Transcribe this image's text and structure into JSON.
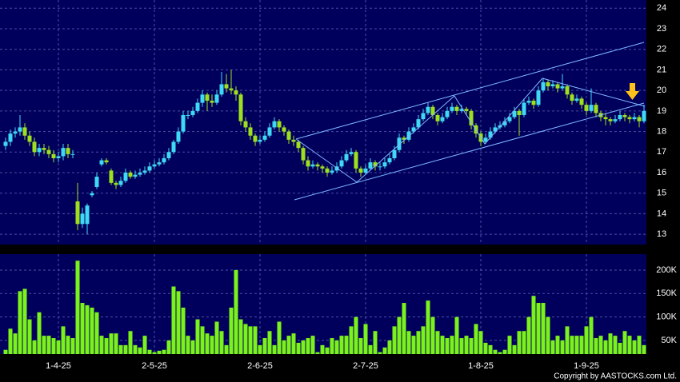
{
  "chart_data": [
    {
      "type": "candlestick",
      "up_color": "#3fd8f5",
      "down_color": "#9ee01e",
      "grid": true,
      "ylim": [
        12.5,
        24.4
      ],
      "yticks": [
        13,
        14,
        15,
        16,
        17,
        18,
        19,
        20,
        21,
        22,
        23,
        24
      ],
      "ohlc": [
        [
          17.3,
          17.7,
          17.1,
          17.5
        ],
        [
          17.5,
          18.1,
          17.3,
          17.9
        ],
        [
          17.9,
          18.2,
          17.7,
          18.0
        ],
        [
          18.0,
          18.8,
          17.8,
          18.2
        ],
        [
          18.2,
          18.4,
          17.6,
          17.8
        ],
        [
          17.8,
          18.0,
          17.3,
          17.5
        ],
        [
          17.5,
          17.7,
          16.8,
          17.0
        ],
        [
          17.0,
          17.4,
          16.8,
          17.2
        ],
        [
          17.2,
          17.4,
          16.9,
          17.1
        ],
        [
          17.1,
          17.3,
          16.7,
          16.9
        ],
        [
          16.9,
          17.1,
          16.5,
          16.7
        ],
        [
          16.7,
          17.0,
          16.5,
          16.8
        ],
        [
          16.8,
          17.4,
          16.6,
          17.2
        ],
        [
          17.2,
          17.4,
          16.7,
          16.9
        ],
        [
          16.9,
          17.1,
          16.7,
          16.9
        ],
        [
          14.6,
          15.5,
          13.2,
          13.5
        ],
        [
          13.5,
          14.3,
          13.3,
          14.0
        ],
        [
          13.5,
          14.5,
          13.0,
          14.4
        ],
        [
          14.9,
          15.1,
          14.8,
          15.0
        ],
        [
          15.3,
          16.0,
          15.2,
          15.8
        ],
        [
          16.4,
          16.7,
          16.3,
          16.6
        ],
        [
          16.6,
          16.7,
          16.4,
          16.5
        ],
        [
          16.1,
          16.2,
          15.4,
          15.5
        ],
        [
          15.5,
          15.6,
          15.2,
          15.4
        ],
        [
          15.4,
          15.8,
          15.3,
          15.6
        ],
        [
          15.6,
          16.2,
          15.5,
          16.0
        ],
        [
          16.0,
          16.1,
          15.7,
          15.8
        ],
        [
          15.8,
          16.1,
          15.7,
          15.9
        ],
        [
          15.9,
          16.2,
          15.8,
          16.0
        ],
        [
          16.0,
          16.3,
          15.9,
          16.1
        ],
        [
          16.1,
          16.5,
          16.0,
          16.3
        ],
        [
          16.3,
          16.6,
          16.2,
          16.4
        ],
        [
          16.4,
          16.7,
          16.3,
          16.5
        ],
        [
          16.5,
          16.9,
          16.4,
          16.7
        ],
        [
          16.7,
          17.2,
          16.6,
          17.0
        ],
        [
          17.0,
          17.6,
          16.9,
          17.5
        ],
        [
          17.5,
          18.2,
          17.4,
          18.0
        ],
        [
          18.0,
          19.0,
          17.9,
          18.8
        ],
        [
          18.8,
          19.0,
          18.6,
          18.8
        ],
        [
          18.8,
          19.2,
          18.7,
          19.0
        ],
        [
          19.0,
          19.6,
          18.9,
          19.4
        ],
        [
          19.4,
          20.0,
          19.2,
          19.8
        ],
        [
          19.8,
          19.9,
          19.0,
          19.5
        ],
        [
          19.5,
          19.8,
          19.2,
          19.4
        ],
        [
          19.4,
          20.0,
          19.3,
          19.8
        ],
        [
          19.8,
          20.9,
          19.7,
          20.3
        ],
        [
          20.3,
          20.8,
          19.9,
          20.1
        ],
        [
          20.1,
          21.0,
          19.8,
          20.0
        ],
        [
          20.0,
          20.2,
          19.5,
          19.8
        ],
        [
          19.8,
          19.9,
          18.3,
          18.5
        ],
        [
          18.5,
          18.7,
          18.0,
          18.2
        ],
        [
          18.2,
          18.4,
          17.6,
          17.8
        ],
        [
          17.8,
          17.9,
          17.3,
          17.5
        ],
        [
          17.5,
          17.8,
          17.4,
          17.6
        ],
        [
          17.6,
          18.0,
          17.5,
          17.8
        ],
        [
          17.8,
          18.4,
          17.7,
          18.2
        ],
        [
          18.2,
          18.7,
          18.1,
          18.5
        ],
        [
          18.5,
          18.6,
          18.0,
          18.2
        ],
        [
          18.2,
          18.3,
          17.8,
          18.0
        ],
        [
          18.0,
          18.1,
          17.4,
          17.6
        ],
        [
          17.6,
          17.8,
          17.3,
          17.5
        ],
        [
          17.5,
          17.6,
          17.0,
          17.2
        ],
        [
          17.2,
          17.3,
          16.4,
          16.6
        ],
        [
          16.6,
          16.8,
          16.1,
          16.3
        ],
        [
          16.3,
          16.6,
          16.2,
          16.4
        ],
        [
          16.4,
          16.5,
          16.1,
          16.3
        ],
        [
          16.3,
          16.4,
          16.0,
          16.2
        ],
        [
          16.2,
          16.3,
          15.8,
          16.0
        ],
        [
          16.0,
          16.3,
          15.9,
          16.1
        ],
        [
          16.1,
          16.5,
          16.0,
          16.3
        ],
        [
          16.3,
          16.8,
          16.2,
          16.6
        ],
        [
          16.6,
          17.1,
          16.5,
          16.9
        ],
        [
          16.9,
          17.2,
          16.8,
          17.0
        ],
        [
          17.0,
          17.1,
          16.0,
          16.2
        ],
        [
          16.2,
          16.3,
          15.8,
          16.0
        ],
        [
          16.0,
          16.4,
          15.9,
          16.2
        ],
        [
          16.2,
          16.7,
          16.1,
          16.5
        ],
        [
          16.5,
          16.6,
          16.1,
          16.3
        ],
        [
          16.3,
          16.5,
          16.1,
          16.3
        ],
        [
          16.3,
          16.7,
          16.2,
          16.5
        ],
        [
          16.5,
          16.9,
          16.4,
          16.7
        ],
        [
          16.7,
          17.3,
          16.6,
          17.1
        ],
        [
          17.1,
          17.9,
          17.0,
          17.7
        ],
        [
          17.7,
          17.8,
          17.4,
          17.6
        ],
        [
          17.6,
          18.2,
          17.5,
          18.0
        ],
        [
          18.0,
          18.4,
          17.9,
          18.2
        ],
        [
          18.2,
          18.8,
          18.1,
          18.6
        ],
        [
          18.6,
          19.1,
          18.5,
          18.9
        ],
        [
          18.9,
          19.4,
          18.8,
          19.2
        ],
        [
          19.2,
          19.3,
          18.6,
          18.8
        ],
        [
          18.8,
          18.9,
          18.3,
          18.5
        ],
        [
          18.5,
          18.9,
          18.4,
          18.7
        ],
        [
          18.7,
          19.2,
          18.6,
          19.0
        ],
        [
          19.0,
          19.4,
          18.9,
          19.2
        ],
        [
          19.2,
          19.3,
          18.8,
          19.0
        ],
        [
          19.0,
          19.3,
          18.9,
          19.1
        ],
        [
          19.1,
          19.2,
          18.8,
          19.0
        ],
        [
          19.0,
          19.1,
          18.1,
          18.3
        ],
        [
          18.3,
          18.4,
          17.7,
          17.9
        ],
        [
          17.9,
          18.0,
          17.3,
          17.5
        ],
        [
          17.5,
          17.9,
          17.4,
          17.7
        ],
        [
          17.7,
          18.2,
          17.6,
          18.0
        ],
        [
          18.0,
          18.4,
          17.9,
          18.2
        ],
        [
          18.2,
          18.5,
          18.1,
          18.3
        ],
        [
          18.3,
          18.7,
          18.2,
          18.5
        ],
        [
          18.5,
          18.9,
          18.4,
          18.7
        ],
        [
          18.7,
          19.2,
          18.6,
          19.0
        ],
        [
          19.0,
          19.1,
          17.8,
          18.8
        ],
        [
          18.8,
          19.6,
          18.7,
          19.4
        ],
        [
          19.4,
          19.7,
          19.3,
          19.5
        ],
        [
          19.5,
          19.6,
          19.1,
          19.3
        ],
        [
          19.3,
          20.2,
          19.2,
          20.0
        ],
        [
          20.0,
          20.6,
          19.9,
          20.4
        ],
        [
          20.4,
          20.5,
          20.0,
          20.2
        ],
        [
          20.2,
          20.5,
          20.1,
          20.3
        ],
        [
          20.3,
          20.4,
          19.9,
          20.1
        ],
        [
          20.1,
          20.8,
          20.0,
          20.2
        ],
        [
          20.2,
          20.3,
          19.6,
          19.8
        ],
        [
          19.8,
          19.9,
          19.3,
          19.5
        ],
        [
          19.5,
          19.8,
          19.4,
          19.6
        ],
        [
          19.6,
          19.7,
          19.1,
          19.3
        ],
        [
          19.3,
          19.4,
          18.8,
          19.0
        ],
        [
          19.0,
          20.1,
          18.9,
          19.3
        ],
        [
          19.3,
          19.4,
          18.7,
          18.9
        ],
        [
          18.9,
          19.0,
          18.5,
          18.7
        ],
        [
          18.7,
          18.9,
          18.3,
          18.6
        ],
        [
          18.6,
          18.7,
          18.3,
          18.5
        ],
        [
          18.5,
          18.8,
          18.4,
          18.6
        ],
        [
          18.6,
          19.0,
          18.5,
          18.8
        ],
        [
          18.8,
          18.9,
          18.5,
          18.7
        ],
        [
          18.7,
          18.8,
          18.4,
          18.6
        ],
        [
          18.6,
          18.9,
          18.5,
          18.7
        ],
        [
          18.7,
          18.8,
          18.2,
          18.5
        ],
        [
          18.5,
          19.3,
          18.4,
          19.0
        ]
      ]
    },
    {
      "type": "bar",
      "color": "#7cf21c",
      "grid": true,
      "ylim": [
        21000,
        234000
      ],
      "yticks": [
        {
          "value": 50000,
          "label": "50K"
        },
        {
          "value": 100000,
          "label": "100K"
        },
        {
          "value": 150000,
          "label": "150K"
        },
        {
          "value": 200000,
          "label": "200K"
        }
      ],
      "categories": [
        null,
        null,
        null,
        null,
        null,
        null,
        null,
        null,
        null,
        null,
        null,
        "1-4-25",
        null,
        null,
        null,
        null,
        null,
        null,
        null,
        null,
        null,
        null,
        null,
        null,
        null,
        null,
        null,
        null,
        null,
        null,
        null,
        "2-5-25",
        null,
        null,
        null,
        null,
        null,
        null,
        null,
        null,
        null,
        null,
        null,
        null,
        null,
        null,
        null,
        null,
        null,
        null,
        null,
        null,
        null,
        "2-6-25",
        null,
        null,
        null,
        null,
        null,
        null,
        null,
        null,
        null,
        null,
        null,
        null,
        null,
        null,
        null,
        null,
        null,
        null,
        null,
        null,
        null,
        "2-7-25",
        null,
        null,
        null,
        null,
        null,
        null,
        null,
        null,
        null,
        null,
        null,
        null,
        null,
        null,
        null,
        null,
        null,
        null,
        null,
        null,
        null,
        null,
        null,
        "1-8-25",
        null,
        null,
        null,
        null,
        null,
        null,
        null,
        null,
        null,
        null,
        null,
        null,
        null,
        null,
        null,
        null,
        null,
        null,
        null,
        null,
        null,
        "1-9-25",
        null,
        null,
        null,
        null,
        null,
        null,
        null,
        null,
        null,
        null,
        null,
        null
      ],
      "values": [
        30000,
        75000,
        65000,
        155000,
        160000,
        95000,
        50000,
        110000,
        60000,
        60000,
        55000,
        50000,
        80000,
        60000,
        55000,
        220000,
        130000,
        125000,
        120000,
        110000,
        60000,
        55000,
        65000,
        65000,
        40000,
        40000,
        70000,
        40000,
        35000,
        60000,
        30000,
        25000,
        28000,
        30000,
        50000,
        165000,
        155000,
        120000,
        60000,
        50000,
        95000,
        80000,
        65000,
        60000,
        90000,
        70000,
        40000,
        120000,
        200000,
        95000,
        85000,
        80000,
        80000,
        40000,
        55000,
        70000,
        40000,
        90000,
        50000,
        60000,
        65000,
        45000,
        50000,
        55000,
        60000,
        25000,
        40000,
        35000,
        55000,
        50000,
        60000,
        60000,
        80000,
        100000,
        55000,
        85000,
        40000,
        70000,
        25000,
        35000,
        50000,
        80000,
        100000,
        130000,
        70000,
        60000,
        70000,
        80000,
        135000,
        100000,
        70000,
        60000,
        55000,
        60000,
        100000,
        55000,
        60000,
        55000,
        85000,
        70000,
        45000,
        40000,
        30000,
        25000,
        30000,
        60000,
        40000,
        70000,
        70000,
        100000,
        145000,
        130000,
        130000,
        100000,
        50000,
        60000,
        50000,
        80000,
        60000,
        60000,
        60000,
        80000,
        100000,
        55000,
        60000,
        50000,
        65000,
        60000,
        45000,
        70000,
        60000,
        50000,
        60000,
        40000
      ]
    }
  ],
  "footer": "Copyright by AASTOCKS.com Ltd."
}
